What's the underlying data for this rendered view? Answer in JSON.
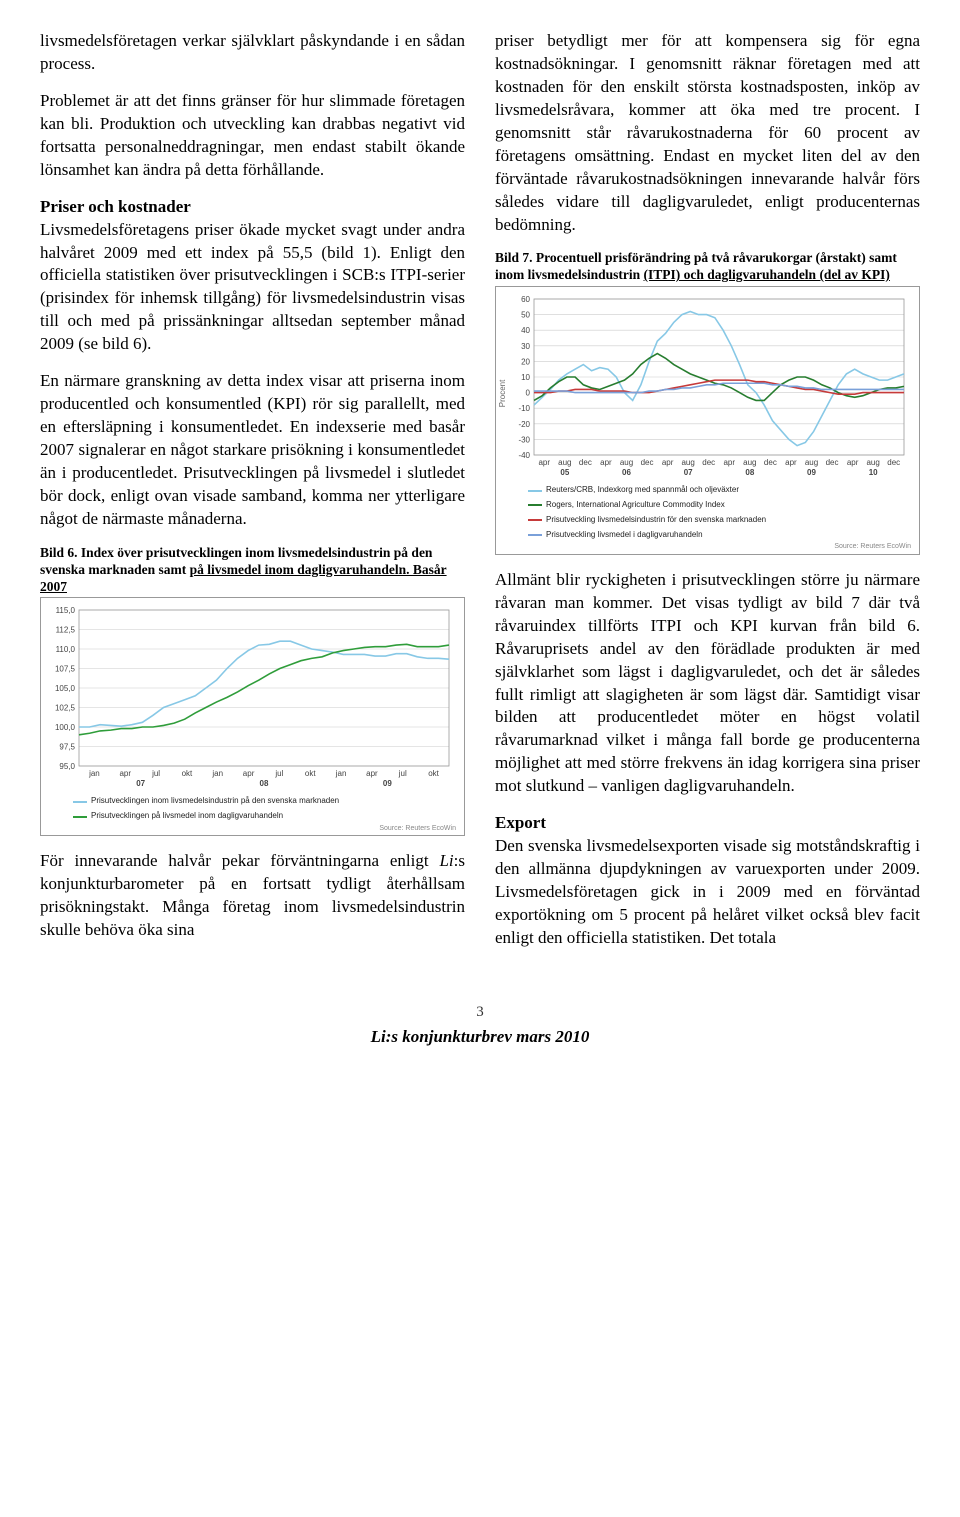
{
  "left": {
    "p1": "livsmedelsföretagen verkar självklart påskyndande i en sådan process.",
    "p2": "Problemet är att det finns gränser för hur slimmade företagen kan bli. Produktion och utveckling kan drabbas negativt vid fortsatta personalneddragningar, men endast stabilt ökande lönsamhet kan ändra på detta förhållande.",
    "h1": "Priser och kostnader",
    "p3": "Livsmedelsföretagens priser ökade mycket svagt under andra halvåret 2009 med ett index på 55,5 (bild 1). Enligt den officiella statistiken över prisutvecklingen i SCB:s ITPI-serier (prisindex för inhemsk tillgång) för livsmedelsindustrin visas till och med på prissänkningar alltsedan september månad 2009 (se bild 6).",
    "p4": "En närmare granskning av detta index visar att priserna inom producentled och konsumentled (KPI) rör sig parallellt, med en eftersläpning i konsumentledet. En indexserie med basår 2007 signalerar en något starkare prisökning i konsumentledet än i producentledet. Prisutvecklingen på livsmedel i slutledet bör dock, enligt ovan visade samband, komma ner ytterligare något de närmaste månaderna.",
    "chart6": {
      "caption_a": "Bild 6. Index över prisutvecklingen inom livsmedelsindustrin på den svenska marknaden samt ",
      "caption_b": "på livsmedel inom dagligvaruhandeln. Basår 2007",
      "type": "line",
      "ylim": [
        95.0,
        115.0
      ],
      "ytick_step": 2.5,
      "yticks": [
        "115,0",
        "112,5",
        "110,0",
        "107,5",
        "105,0",
        "102,5",
        "100,0",
        "97,5",
        "95,0"
      ],
      "xlabels_months": [
        "jan",
        "apr",
        "jul",
        "okt",
        "jan",
        "apr",
        "jul",
        "okt",
        "jan",
        "apr",
        "jul",
        "okt"
      ],
      "xlabels_years": [
        "07",
        "08",
        "09"
      ],
      "colors": {
        "producer": "#87c8e6",
        "consumer": "#2f9d3a",
        "grid": "#cccccc",
        "axis": "#999999",
        "bg": "#ffffff"
      },
      "font_size_axis": 8,
      "series_producer": [
        100,
        100,
        100.3,
        100.2,
        100.1,
        100.3,
        100.6,
        101.5,
        102.5,
        103.0,
        103.5,
        104.0,
        105.0,
        106.0,
        107.5,
        108.8,
        109.8,
        110.5,
        110.6,
        111.0,
        111.0,
        110.5,
        110.0,
        109.8,
        109.6,
        109.3,
        109.3,
        109.3,
        109.1,
        109.1,
        109.4,
        109.4,
        109.0,
        108.8,
        108.8,
        108.7
      ],
      "series_consumer": [
        99.0,
        99.2,
        99.5,
        99.6,
        99.8,
        99.8,
        100.0,
        100.0,
        100.2,
        100.5,
        101.0,
        101.8,
        102.5,
        103.2,
        103.8,
        104.5,
        105.3,
        106.0,
        106.8,
        107.5,
        108.0,
        108.5,
        108.8,
        109.0,
        109.5,
        109.8,
        110.0,
        110.2,
        110.3,
        110.3,
        110.5,
        110.6,
        110.3,
        110.3,
        110.3,
        110.5
      ],
      "legend": [
        {
          "color": "#87c8e6",
          "label": "Prisutvecklingen inom livsmedelsindustrin på den svenska marknaden"
        },
        {
          "color": "#2f9d3a",
          "label": "Prisutvecklingen på livsmedel inom dagligvaruhandeln"
        }
      ],
      "source": "Source: Reuters EcoWin"
    },
    "p5": "För innevarande halvår pekar förvänt­ningarna enligt Li:s konjunkturbarometer på en fortsatt tydligt återhållsam prisökningstakt. Många företag inom livsmedelsindustrin skulle behöva öka sina"
  },
  "right": {
    "p1": "priser betydligt mer för att kompensera sig för egna kostnadsökningar. I genomsnitt räknar företagen med att kostnaden för den enskilt största kostnadsposten, inköp av livsmedelsråvara, kommer att öka med tre procent. I genomsnitt står råvaru­kostnaderna för 60 procent av företagens omsättning. Endast en mycket liten del av den förväntade råvarukostnadsökningen innevarande halvår förs således vidare till dagligvaruledet, enligt producenternas bedömning.",
    "chart7": {
      "caption_a": "Bild 7. Procentuell prisförändring på två råvarukorgar (årstakt) samt inom livsmedelsindustrin ",
      "caption_b": "(ITPI) och dagligvaruhandeln (del av KPI)",
      "type": "line",
      "ylim": [
        -40,
        60
      ],
      "ytick_step": 10,
      "yticks": [
        "60",
        "50",
        "40",
        "30",
        "20",
        "10",
        "0",
        "-10",
        "-20",
        "-30",
        "-40"
      ],
      "ylabel": "Procent",
      "xlabels_months": [
        "apr",
        "aug",
        "dec",
        "apr",
        "aug",
        "dec",
        "apr",
        "aug",
        "dec",
        "apr",
        "aug",
        "dec",
        "apr",
        "aug",
        "dec",
        "apr",
        "aug",
        "dec"
      ],
      "xlabels_years": [
        "05",
        "06",
        "07",
        "08",
        "09",
        "10"
      ],
      "colors": {
        "s1": "#87c8e6",
        "s2": "#277d2f",
        "s3": "#c63a3a",
        "s4": "#7aa0d9",
        "grid": "#cccccc",
        "axis": "#999999",
        "bg": "#ffffff"
      },
      "font_size_axis": 8,
      "series1": [
        -8,
        -3,
        2,
        8,
        12,
        15,
        18,
        14,
        16,
        15,
        10,
        0,
        -5,
        5,
        20,
        33,
        38,
        45,
        50,
        52,
        50,
        50,
        48,
        40,
        30,
        18,
        5,
        0,
        -8,
        -18,
        -24,
        -30,
        -34,
        -32,
        -25,
        -15,
        -5,
        5,
        12,
        15,
        12,
        10,
        8,
        8,
        10,
        12
      ],
      "series2": [
        -5,
        -2,
        3,
        7,
        10,
        10,
        5,
        3,
        2,
        4,
        6,
        8,
        12,
        18,
        22,
        25,
        22,
        18,
        15,
        12,
        10,
        8,
        6,
        5,
        3,
        0,
        -3,
        -5,
        -5,
        0,
        5,
        8,
        10,
        10,
        8,
        5,
        3,
        0,
        -2,
        -3,
        -2,
        0,
        2,
        3,
        3,
        4
      ],
      "series3": [
        0,
        0,
        0,
        1,
        1,
        2,
        2,
        2,
        1,
        1,
        1,
        1,
        0,
        0,
        0,
        1,
        2,
        3,
        4,
        5,
        6,
        7,
        8,
        8,
        8,
        8,
        8,
        7,
        7,
        6,
        5,
        4,
        3,
        2,
        2,
        1,
        0,
        -1,
        -1,
        -1,
        0,
        0,
        0,
        0,
        0,
        0
      ],
      "series4": [
        1,
        1,
        1,
        1,
        1,
        0,
        0,
        0,
        0,
        0,
        0,
        0,
        0,
        0,
        1,
        1,
        2,
        2,
        3,
        3,
        4,
        5,
        5,
        6,
        6,
        6,
        6,
        6,
        6,
        5,
        5,
        4,
        4,
        3,
        3,
        2,
        2,
        2,
        2,
        2,
        2,
        2,
        2,
        2,
        2,
        2
      ],
      "legend": [
        {
          "color": "#87c8e6",
          "label": "Reuters/CRB, Indexkorg med spannmål och oljeväxter"
        },
        {
          "color": "#277d2f",
          "label": "Rogers, International Agriculture Commodity Index"
        },
        {
          "color": "#c63a3a",
          "label": "Prisutveckling livsmedelsindustrin för den svenska marknaden"
        },
        {
          "color": "#7aa0d9",
          "label": "Prisutveckling livsmedel i dagligvaruhandeln"
        }
      ],
      "source": "Source: Reuters EcoWin"
    },
    "p2": "Allmänt blir ryckigheten i prisutvecklingen större ju närmare råvaran man kommer. Det visas tydligt av bild 7 där två råvaruindex tillförts ITPI och KPI kurvan från bild 6. Råvaruprisets andel av den förädlade produkten är med självklarhet som lägst i dagligvaruledet, och det är således fullt rimligt att slagigheten är som lägst där. Samtidigt visar bilden att producentledet möter en högst volatil råvarumarknad vilket i många fall borde ge producenterna möjlighet att med större frekvens än idag korrigera sina priser mot slutkund – vanligen dagligvaruhandeln.",
    "h2": "Export",
    "p3": "Den svenska livsmedelsexporten visade sig motståndskraftig i den allmänna djup­dykningen av varuexporten under 2009. Livsmedelsföretagen gick in i 2009 med en förväntad exportökning om 5 procent på helåret vilket också blev facit enligt den officiella statistiken. Det totala"
  },
  "footer": {
    "page": "3",
    "title": "Li:s konjunkturbrev mars 2010"
  }
}
